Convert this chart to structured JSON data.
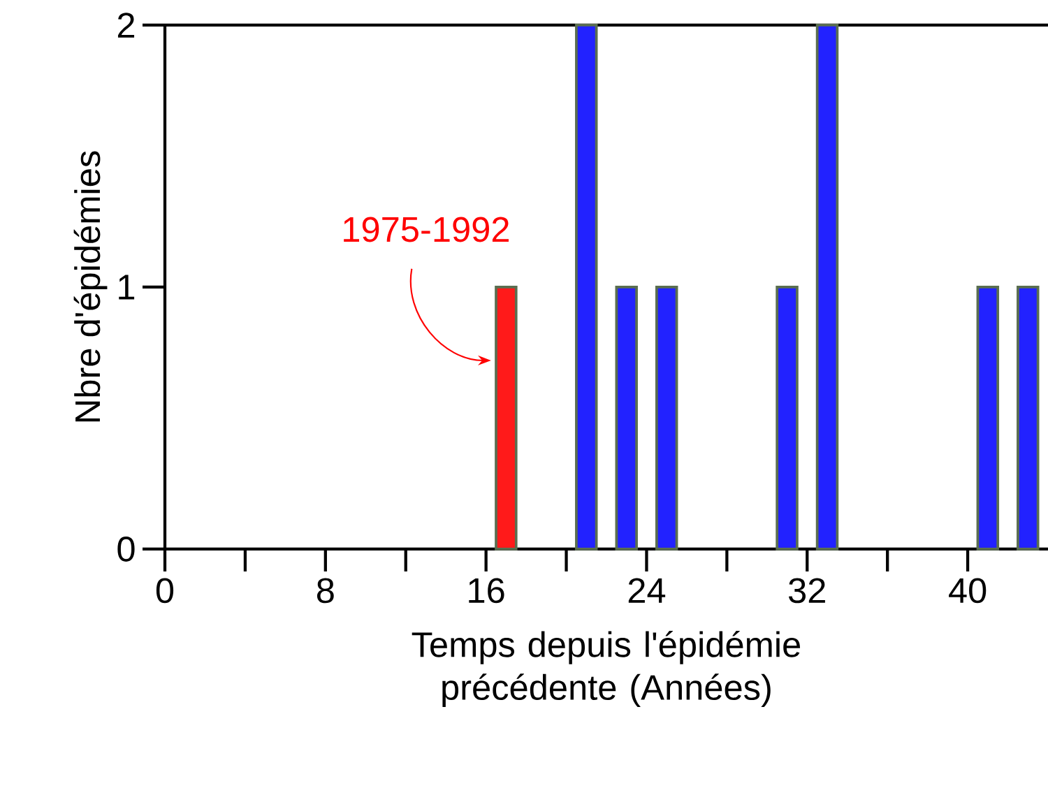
{
  "chart_data": {
    "type": "bar",
    "x": [
      17,
      21,
      23,
      25,
      31,
      33,
      41,
      43
    ],
    "values": [
      1,
      2,
      1,
      1,
      1,
      2,
      1,
      1
    ],
    "colors": [
      "#ff1a1a",
      "#2222ff",
      "#2222ff",
      "#2222ff",
      "#2222ff",
      "#2222ff",
      "#2222ff",
      "#2222ff"
    ],
    "xlabel": "Temps depuis l'épidémie précédente (Années)",
    "ylabel": "Nbre d'épidémies",
    "xlim": [
      0,
      44
    ],
    "ylim": [
      0,
      2
    ],
    "xticks": [
      0,
      {
        "value": 4,
        "label": null
      },
      8,
      {
        "value": 12,
        "label": null
      },
      16,
      {
        "value": 20,
        "label": null
      },
      24,
      {
        "value": 28,
        "label": null
      },
      32,
      {
        "value": 36,
        "label": null
      },
      40
    ],
    "yticks": [
      0,
      1,
      2
    ],
    "annotations": [
      "1975-1992"
    ]
  }
}
